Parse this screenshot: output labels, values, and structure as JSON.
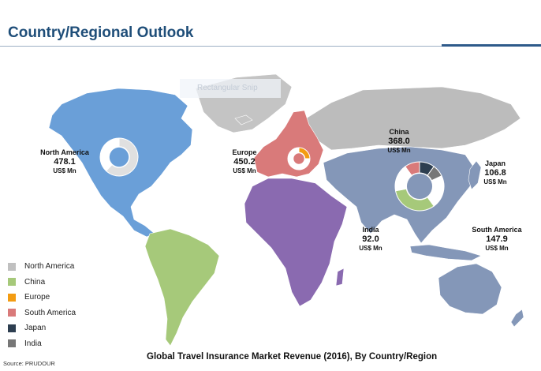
{
  "header": {
    "title": "Country/Regional Outlook"
  },
  "ghost_label": "Rectangular Snip",
  "colors": {
    "north_america": "#6a9fd8",
    "greenland": "#c4c4c4",
    "europe": "#d97a7a",
    "russia": "#bcbcbc",
    "asia": "#8497b8",
    "south_america": "#a6c97a",
    "africa": "#8a6ab0",
    "oceania": "#8497b8"
  },
  "regions": {
    "north_america": {
      "name": "North America",
      "value": "478.1",
      "unit": "US$ Mn"
    },
    "europe": {
      "name": "Europe",
      "value": "450.2",
      "unit": "US$ Mn"
    },
    "china": {
      "name": "China",
      "value": "368.0",
      "unit": "US$ Mn"
    },
    "japan": {
      "name": "Japan",
      "value": "106.8",
      "unit": "US$ Mn"
    },
    "india": {
      "name": "India",
      "value": "92.0",
      "unit": "US$ Mn"
    },
    "south_america": {
      "name": "South America",
      "value": "147.9",
      "unit": "US$ Mn"
    }
  },
  "legend": [
    {
      "label": "North America",
      "color": "#c0c0c0"
    },
    {
      "label": "China",
      "color": "#a6c97a"
    },
    {
      "label": "Europe",
      "color": "#f39c12"
    },
    {
      "label": "South America",
      "color": "#d97a7a"
    },
    {
      "label": "Japan",
      "color": "#2d3e50"
    },
    {
      "label": "India",
      "color": "#777777"
    }
  ],
  "caption": "Global Travel Insurance Market Revenue (2016), By Country/Region",
  "source": "Source: PRUDOUR",
  "donuts": {
    "north_america": [
      {
        "share": 0.62,
        "color": "#e0e0e0"
      },
      {
        "share": 0.38,
        "color": "#ffffff"
      }
    ],
    "europe": [
      {
        "share": 0.25,
        "color": "#f39c12"
      },
      {
        "share": 0.75,
        "color": "#ffffff"
      }
    ],
    "china": [
      {
        "share": 0.1,
        "color": "#2d3e50"
      },
      {
        "share": 0.08,
        "color": "#777777"
      },
      {
        "share": 0.22,
        "color": "#ffffff"
      },
      {
        "share": 0.32,
        "color": "#a6c97a"
      },
      {
        "share": 0.18,
        "color": "#ffffff"
      },
      {
        "share": 0.1,
        "color": "#d97a7a"
      }
    ]
  }
}
